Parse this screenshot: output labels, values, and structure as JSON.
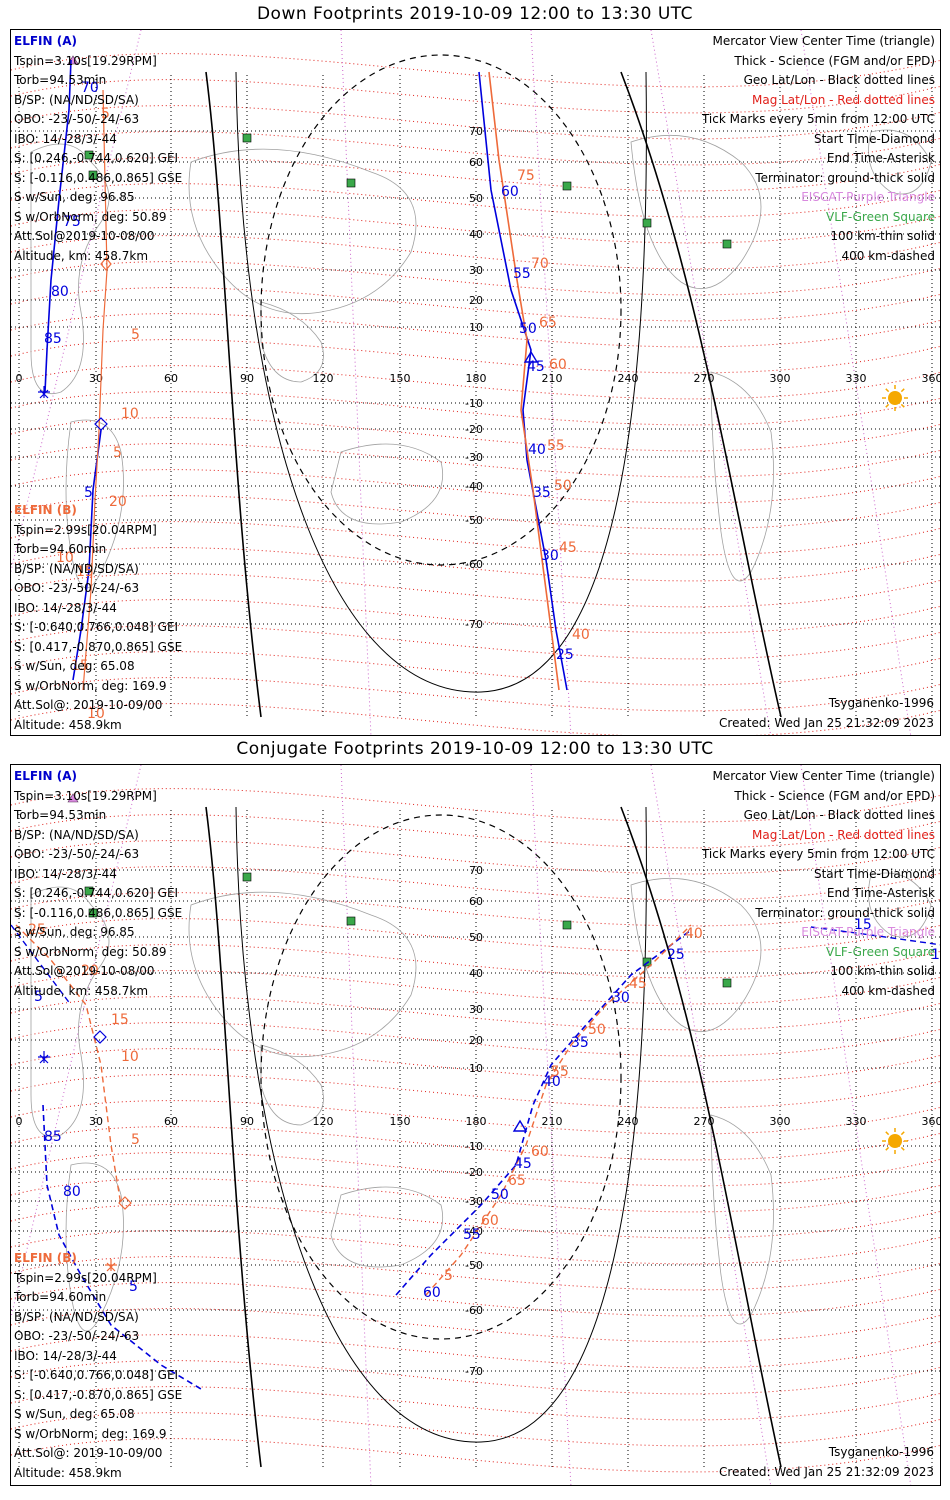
{
  "panels": [
    {
      "title": "Down Footprints 2019-10-09 12:00 to 13:30 UTC",
      "elfin_a": {
        "name": "ELFIN (A)",
        "lines": [
          "Tspin=3.10s[19.29RPM]",
          "Torb=94.53min",
          "B/SP: (NA/ND/SD/SA)",
          "OBO: -23/-50/-24/-63",
          "IBO: 14/-28/3/-44",
          "S: [0.246,-0.744,0.620] GEI",
          "S: [-0.116,0.486,0.865] GSE",
          "S w/Sun, deg: 96.85",
          "S w/OrbNorm, deg: 50.89",
          "Att.Sol@2019-10-08/00",
          "Altitude, km: 458.7km"
        ]
      },
      "elfin_b": {
        "name": "ELFIN (B)",
        "lines": [
          "Tspin=2.99s[20.04RPM]",
          "Torb=94.60min",
          "B/SP: (NA/ND/SD/SA)",
          "OBO: -23/-50/-24/-63",
          "IBO: 14/-28/3/-44",
          "S: [-0.640,0.766,0.048] GEI",
          "S: [0.417,-0.870,0.865] GSE",
          "S w/Sun, deg: 65.08",
          "S w/OrbNorm, deg: 169.9",
          "Att.Sol@: 2019-10-09/00",
          "Altitude: 458.9km"
        ]
      },
      "legend": [
        {
          "text": "Mercator View Center Time (triangle)",
          "color": "#000000"
        },
        {
          "text": "Thick - Science (FGM and/or EPD)",
          "color": "#000000"
        },
        {
          "text": "Geo Lat/Lon - Black dotted lines",
          "color": "#000000"
        },
        {
          "text": "Mag Lat/Lon - Red dotted lines",
          "color": "#e0201a"
        },
        {
          "text": "Tick Marks every 5min from 12:00 UTC",
          "color": "#000000"
        },
        {
          "text": "Start Time-Diamond",
          "color": "#000000"
        },
        {
          "text": "End Time-Asterisk",
          "color": "#000000"
        },
        {
          "text": "Terminator: ground-thick solid",
          "color": "#000000"
        },
        {
          "text": "EISCAT-Purple Triangle",
          "color": "#d98adf"
        },
        {
          "text": "VLF-Green Square",
          "color": "#3aa84a"
        },
        {
          "text": "100 km-thin solid",
          "color": "#000000"
        },
        {
          "text": "400 km-dashed",
          "color": "#000000"
        }
      ],
      "model": "Tsyganenko-1996",
      "created": "Created: Wed Jan 25 21:32:09 2023",
      "trackA": {
        "style": "solid",
        "color": "#0000dd",
        "ticks": [
          [
            "80",
            40,
            266
          ],
          [
            "85",
            33,
            313
          ],
          [
            "75",
            52,
            196
          ],
          [
            "70",
            70,
            62
          ],
          [
            "60",
            490,
            166
          ],
          [
            "55",
            502,
            248
          ],
          [
            "50",
            508,
            303
          ],
          [
            "45",
            516,
            341
          ],
          [
            "40",
            517,
            424
          ],
          [
            "35",
            522,
            467
          ],
          [
            "30",
            530,
            530
          ],
          [
            "25",
            545,
            629
          ],
          [
            "5",
            73,
            467
          ]
        ]
      },
      "trackB": {
        "style": "solid",
        "color": "#ee6a3a",
        "ticks": [
          [
            "5",
            120,
            309
          ],
          [
            "10",
            110,
            388
          ],
          [
            "5",
            102,
            427
          ],
          [
            "20",
            98,
            476
          ],
          [
            "15",
            65,
            546
          ],
          [
            "10",
            45,
            532
          ],
          [
            "15",
            60,
            640
          ],
          [
            "10",
            76,
            688
          ],
          [
            "75",
            506,
            150
          ],
          [
            "70",
            520,
            238
          ],
          [
            "65",
            528,
            297
          ],
          [
            "60",
            538,
            339
          ],
          [
            "55",
            536,
            420
          ],
          [
            "50",
            543,
            460
          ],
          [
            "45",
            548,
            522
          ],
          [
            "40",
            561,
            609
          ],
          [
            "5",
            90,
            88
          ]
        ]
      }
    },
    {
      "title": "Conjugate Footprints 2019-10-09 12:00 to 13:30 UTC",
      "elfin_a": {
        "name": "ELFIN (A)",
        "lines": [
          "Tspin=3.10s[19.29RPM]",
          "Torb=94.53min",
          "B/SP: (NA/ND/SD/SA)",
          "OBO: -23/-50/-24/-63",
          "IBO: 14/-28/3/-44",
          "S: [0.246,-0.744,0.620] GEI",
          "S: [-0.116,0.486,0.865] GSE",
          "S w/Sun, deg: 96.85",
          "S w/OrbNorm, deg: 50.89",
          "Att.Sol@2019-10-08/00",
          "Altitude, km: 458.7km"
        ]
      },
      "elfin_b": {
        "name": "ELFIN (B)",
        "lines": [
          "Tspin=2.99s[20.04RPM]",
          "Torb=94.60min",
          "B/SP: (NA/ND/SD/SA)",
          "OBO: -23/-50/-24/-63",
          "IBO: 14/-28/3/-44",
          "S: [-0.640,0.766,0.048] GEI",
          "S: [0.417,-0.870,0.865] GSE",
          "S w/Sun, deg: 65.08",
          "S w/OrbNorm, deg: 169.9",
          "Att.Sol@: 2019-10-09/00",
          "Altitude: 458.9km"
        ]
      },
      "legend": [
        {
          "text": "Mercator View Center Time (triangle)",
          "color": "#000000"
        },
        {
          "text": "Thick - Science (FGM and/or EPD)",
          "color": "#000000"
        },
        {
          "text": "Geo Lat/Lon - Black dotted lines",
          "color": "#000000"
        },
        {
          "text": "Mag Lat/Lon - Red dotted lines",
          "color": "#e0201a"
        },
        {
          "text": "Tick Marks every 5min from 12:00 UTC",
          "color": "#000000"
        },
        {
          "text": "Start Time-Diamond",
          "color": "#000000"
        },
        {
          "text": "End Time-Asterisk",
          "color": "#000000"
        },
        {
          "text": "Terminator: ground-thick solid",
          "color": "#000000"
        },
        {
          "text": "EISCAT-Purple Triangle",
          "color": "#d98adf"
        },
        {
          "text": "VLF-Green Square",
          "color": "#3aa84a"
        },
        {
          "text": "100 km-thin solid",
          "color": "#000000"
        },
        {
          "text": "400 km-dashed",
          "color": "#000000"
        }
      ],
      "model": "Tsyganenko-1996",
      "created": "Created: Wed Jan 25 21:32:09 2023",
      "trackA": {
        "style": "dashed",
        "color": "#0000dd",
        "ticks": [
          [
            "85",
            33,
            1140
          ],
          [
            "80",
            52,
            1195
          ],
          [
            "5",
            23,
            1000
          ],
          [
            "5",
            118,
            1290
          ],
          [
            "60",
            412,
            1296
          ],
          [
            "55",
            452,
            1238
          ],
          [
            "50",
            480,
            1198
          ],
          [
            "45",
            503,
            1167
          ],
          [
            "40",
            532,
            1085
          ],
          [
            "35",
            560,
            1046
          ],
          [
            "30",
            601,
            1001
          ],
          [
            "25",
            656,
            958
          ],
          [
            "15",
            843,
            928
          ],
          [
            "10",
            920,
            958
          ]
        ]
      },
      "trackB": {
        "style": "dashed",
        "color": "#ee6a3a",
        "ticks": [
          [
            "25",
            17,
            933
          ],
          [
            "20",
            70,
            974
          ],
          [
            "15",
            100,
            1023
          ],
          [
            "10",
            110,
            1060
          ],
          [
            "5",
            120,
            1143
          ],
          [
            "5",
            433,
            1279
          ],
          [
            "60",
            470,
            1224
          ],
          [
            "65",
            497,
            1184
          ],
          [
            "60",
            520,
            1155
          ],
          [
            "55",
            540,
            1075
          ],
          [
            "50",
            577,
            1033
          ],
          [
            "45",
            618,
            987
          ],
          [
            "40",
            674,
            937
          ]
        ]
      }
    }
  ],
  "axis": {
    "lon_labels": [
      "0",
      "30",
      "60",
      "90",
      "120",
      "150",
      "180",
      "210",
      "240",
      "270",
      "300",
      "330",
      "360"
    ],
    "lat_labels": [
      "70",
      "60",
      "50",
      "40",
      "30",
      "20",
      "10",
      "-10",
      "-20",
      "-30",
      "-40",
      "-50",
      "-60",
      "-70"
    ]
  },
  "colors": {
    "elfin_a": "#0000cc",
    "elfin_b": "#ee6a3a",
    "mag_grid": "#e0201a",
    "eiscat": "#d98adf",
    "vlf": "#3aa84a",
    "sun": "#f5a800"
  }
}
